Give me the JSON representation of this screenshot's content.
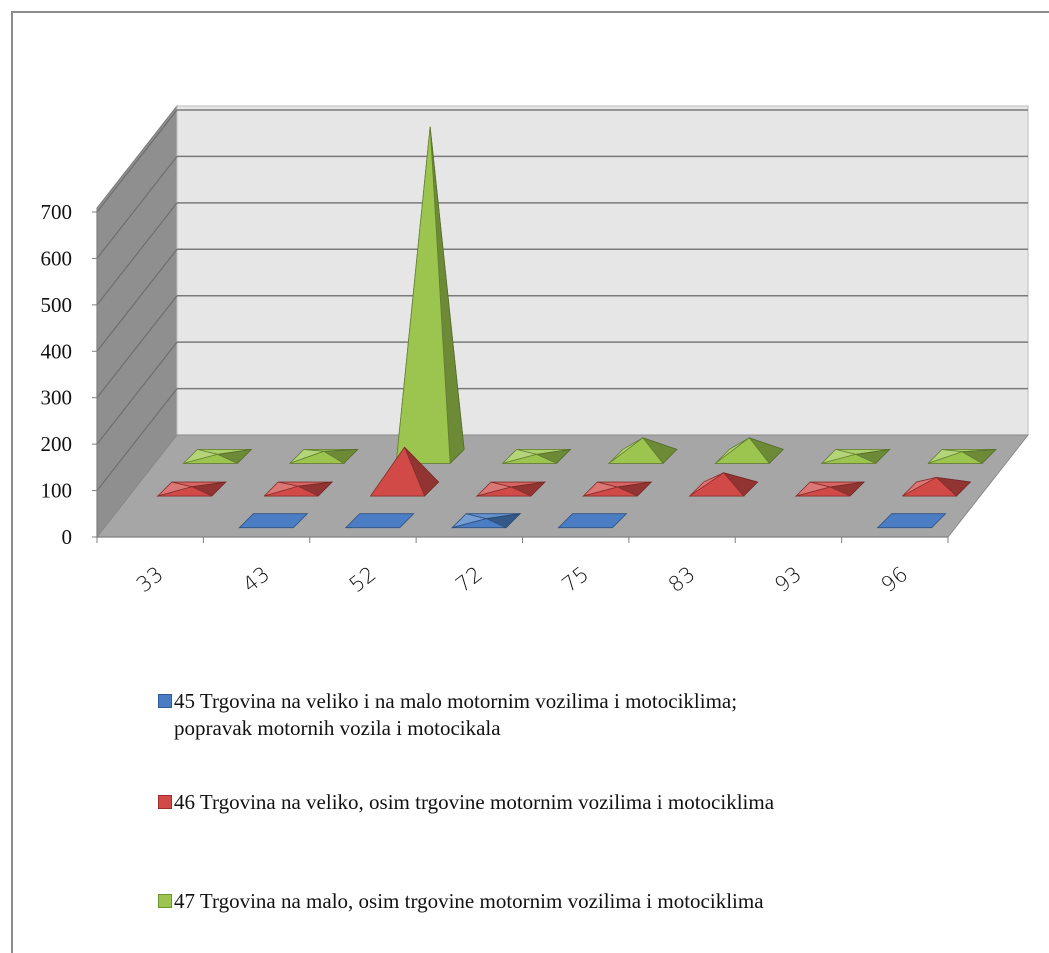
{
  "chart_data": {
    "type": "bar",
    "subtype": "3d-pyramid",
    "title": "",
    "xlabel": "",
    "ylabel": "",
    "ylim": [
      0,
      700
    ],
    "yticks": [
      "0",
      "100",
      "200",
      "300",
      "400",
      "500",
      "600",
      "700"
    ],
    "categories": [
      "33",
      "43",
      "52",
      "72",
      "75",
      "83",
      "93",
      "96"
    ],
    "grid": true,
    "legend_position": "bottom",
    "series": [
      {
        "name": "45 Trgovina na veliko i na malo motornim vozilima i motociklima; popravak motornih vozila i motocikala",
        "color": "#4a7dc4",
        "values": [
          0,
          0,
          0,
          4,
          0,
          0,
          0,
          0
        ],
        "values_between": [
          0,
          0
        ]
      },
      {
        "name": "46 Trgovina na veliko, osim trgovine motornim vozilima i motociklima",
        "color": "#d14a47",
        "values": [
          5,
          6,
          90,
          4,
          4,
          35,
          4,
          25
        ],
        "values_between": [
          5,
          30
        ]
      },
      {
        "name": "47 Trgovina na malo, osim trgovine motornim vozilima i motociklima",
        "color": "#9bc54e",
        "values": [
          3,
          11,
          710,
          3,
          40,
          40,
          4,
          10
        ],
        "values_between": [
          4,
          11
        ]
      }
    ]
  },
  "legend": [
    {
      "label": "45 Trgovina na veliko i na malo motornim vozilima i motociklima; popravak motornih vozila i motocikala"
    },
    {
      "label": "46 Trgovina na veliko, osim trgovine motornim vozilima i motociklima"
    },
    {
      "label": "47 Trgovina na malo, osim trgovine motornim vozilima i motociklima"
    }
  ]
}
